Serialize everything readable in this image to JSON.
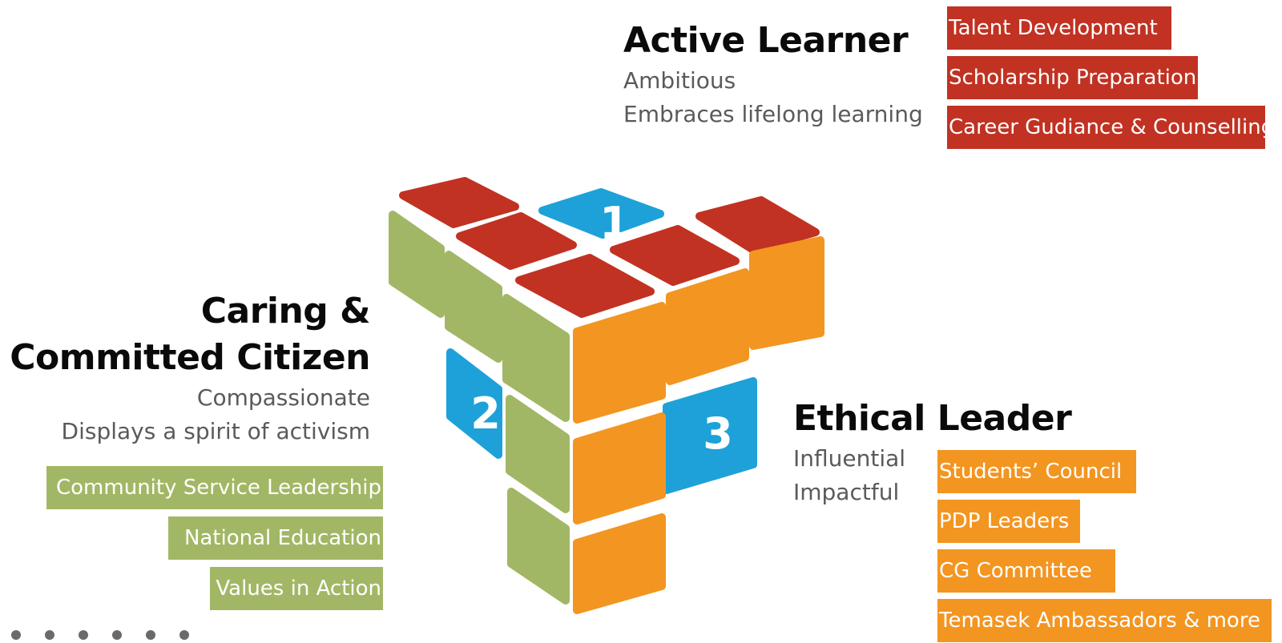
{
  "active_learner": {
    "title": "Active Learner",
    "traits": [
      "Ambitious",
      "Embraces lifelong learning"
    ],
    "programs": [
      "Talent Development",
      "Scholarship Preparation",
      "Career Gudiance & Counselling"
    ]
  },
  "caring_citizen": {
    "title_line1": "Caring &",
    "title_line2": "Committed Citizen",
    "traits": [
      "Compassionate",
      "Displays a spirit of activism"
    ],
    "programs": [
      "Community Service Leadership",
      "National Education",
      "Values in Action"
    ]
  },
  "ethical_leader": {
    "title": "Ethical Leader",
    "traits": [
      "Influential",
      "Impactful"
    ],
    "programs": [
      "Students’ Council",
      "PDP Leaders",
      "CG Committee",
      "Temasek Ambassadors & more"
    ]
  },
  "cube": {
    "numbers": [
      "1",
      "2",
      "3"
    ],
    "colors": {
      "top": "#c13222",
      "left": "#a2b765",
      "right": "#f39521",
      "highlight": "#1da1d8"
    }
  }
}
